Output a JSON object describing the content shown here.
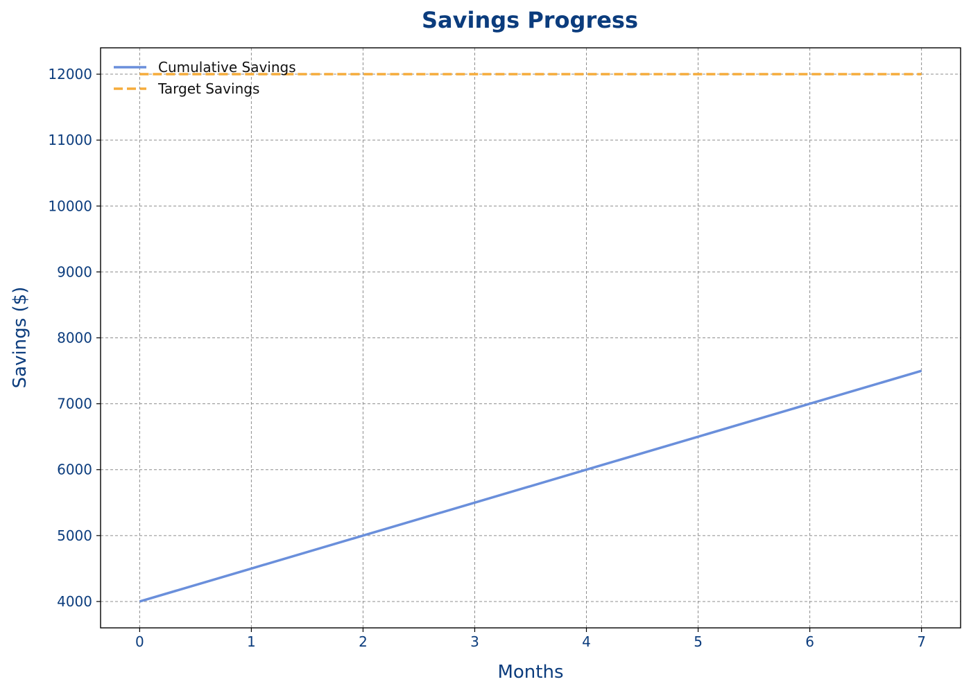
{
  "chart_data": {
    "type": "line",
    "title": "Savings Progress",
    "xlabel": "Months",
    "ylabel": "Savings ($)",
    "x": [
      0,
      1,
      2,
      3,
      4,
      5,
      6,
      7
    ],
    "xlim": [
      -0.35,
      7.35
    ],
    "ylim": [
      3600,
      12400
    ],
    "xticks": [
      "0",
      "1",
      "2",
      "3",
      "4",
      "5",
      "6",
      "7"
    ],
    "yticks": [
      "4000",
      "5000",
      "6000",
      "7000",
      "8000",
      "9000",
      "10000",
      "11000",
      "12000"
    ],
    "grid": true,
    "legend_position": "top-left",
    "series": [
      {
        "name": "Cumulative Savings",
        "values": [
          4000,
          4500,
          5000,
          5500,
          6000,
          6500,
          7000,
          7500
        ],
        "color": "#6a8fdb",
        "style": "solid"
      },
      {
        "name": "Target Savings",
        "values": [
          12000,
          12000,
          12000,
          12000,
          12000,
          12000,
          12000,
          12000
        ],
        "color": "#f5ac3b",
        "style": "dashed"
      }
    ]
  }
}
